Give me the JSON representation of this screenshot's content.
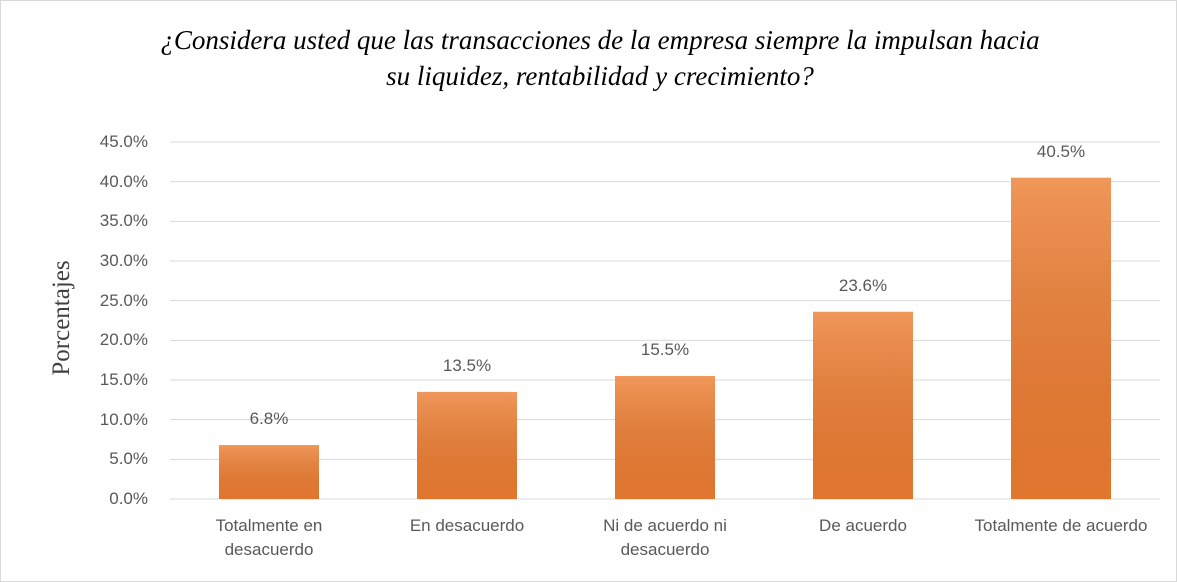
{
  "chart_data": {
    "type": "bar",
    "title": "¿Considera usted que las transacciones de la empresa siempre la impulsan hacia su liquidez, rentabilidad y crecimiento?",
    "y_label": "Porcentajes",
    "categories": [
      "Totalmente en desacuerdo",
      "En desacuerdo",
      "Ni de acuerdo ni desacuerdo",
      "De acuerdo",
      "Totalmente de acuerdo"
    ],
    "values": [
      6.8,
      13.5,
      15.5,
      23.6,
      40.5
    ],
    "value_labels": [
      "6.8%",
      "13.5%",
      "15.5%",
      "23.6%",
      "40.5%"
    ],
    "color": "#ed7d31",
    "ylim": [
      0,
      45
    ],
    "yticks": [
      {
        "value": 0,
        "label": "0.0%"
      },
      {
        "value": 5,
        "label": "5.0%"
      },
      {
        "value": 10,
        "label": "10.0%"
      },
      {
        "value": 15,
        "label": "15.0%"
      },
      {
        "value": 20,
        "label": "20.0%"
      },
      {
        "value": 25,
        "label": "25.0%"
      },
      {
        "value": 30,
        "label": "30.0%"
      },
      {
        "value": 35,
        "label": "35.0%"
      },
      {
        "value": 40,
        "label": "40.0%"
      },
      {
        "value": 45,
        "label": "45.0%"
      }
    ],
    "grid": true
  }
}
